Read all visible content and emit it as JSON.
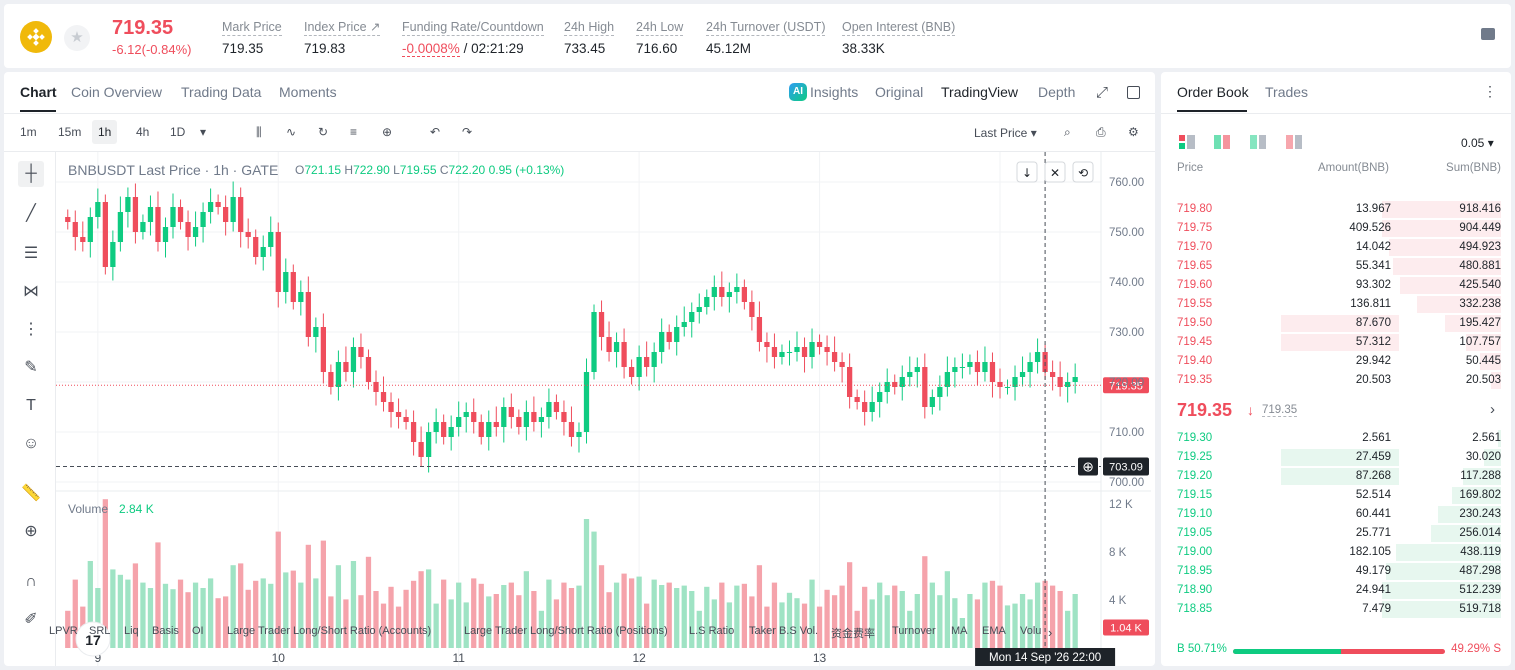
{
  "ticker": {
    "price": "719.35",
    "change": "-6.12(-0.84%)",
    "stats": [
      {
        "label": "Mark Price",
        "value": "719.35"
      },
      {
        "label": "Index Price ↗",
        "value": "719.83"
      },
      {
        "label": "Funding Rate/Countdown",
        "value_rate": "-0.0008%",
        "value_cd": "/ 02:21:29"
      },
      {
        "label": "24h High",
        "value": "733.45"
      },
      {
        "label": "24h Low",
        "value": "716.60"
      },
      {
        "label": "24h Turnover (USDT)",
        "value": "45.12M"
      },
      {
        "label": "Open Interest (BNB)",
        "value": "38.33K"
      }
    ]
  },
  "chart_tabs": [
    "Chart",
    "Coin Overview",
    "Trading Data",
    "Moments"
  ],
  "view_tabs": [
    "Insights",
    "Original",
    "TradingView",
    "Depth"
  ],
  "ai_badge": "AI",
  "timeframes": [
    "1m",
    "15m",
    "1h",
    "4h",
    "1D"
  ],
  "last_price_select": "Last Price",
  "chart_header": {
    "title": "BNBUSDT Last Price · 1h · GATE",
    "o": "721.15",
    "h": "722.90",
    "l": "719.55",
    "c": "722.20",
    "chg": "0.95 (+0.13%)"
  },
  "volume_header": {
    "label": "Volume",
    "value": "2.84 K"
  },
  "price_axis": [
    "760.00",
    "750.00",
    "740.00",
    "730.00",
    "720.00",
    "710.00",
    "700.00"
  ],
  "volume_axis": [
    "12 K",
    "8 K",
    "4 K"
  ],
  "last_price_tag": "719.35",
  "crosshair_price_tag": "703.09",
  "last_volume_tag": "1.04 K",
  "time_axis": [
    "9",
    "10",
    "11",
    "12",
    "13",
    "14"
  ],
  "crosshair_time": "Mon 14 Sep '26   22:00",
  "tv_logo": "17",
  "indicators": [
    "LPVR",
    "SRL",
    "Liq",
    "Basis",
    "OI",
    "Large Trader Long/Short Ratio (Accounts)",
    "Large Trader Long/Short Ratio (Positions)",
    "L.S Ratio",
    "Taker B.S Vol.",
    "资金费率",
    "Turnover",
    "MA",
    "EMA",
    "Volu"
  ],
  "order_book": {
    "tabs": [
      "Order Book",
      "Trades"
    ],
    "tick": "0.05",
    "headers": [
      "Price",
      "Amount(BNB)",
      "Sum(BNB)"
    ],
    "asks": [
      {
        "price": "719.80",
        "amount": "13.967",
        "sum": "918.416",
        "depth": 0.34,
        "amt": 0
      },
      {
        "price": "719.75",
        "amount": "409.526",
        "sum": "904.449",
        "depth": 0.34,
        "amt": 0
      },
      {
        "price": "719.70",
        "amount": "14.042",
        "sum": "494.923",
        "depth": 0.32,
        "amt": 0
      },
      {
        "price": "719.65",
        "amount": "55.341",
        "sum": "480.881",
        "depth": 0.31,
        "amt": 0
      },
      {
        "price": "719.60",
        "amount": "93.302",
        "sum": "425.540",
        "depth": 0.29,
        "amt": 0
      },
      {
        "price": "719.55",
        "amount": "136.811",
        "sum": "332.238",
        "depth": 0.24,
        "amt": 0
      },
      {
        "price": "719.50",
        "amount": "87.670",
        "sum": "195.427",
        "depth": 0.16,
        "amt": 0.34
      },
      {
        "price": "719.45",
        "amount": "57.312",
        "sum": "107.757",
        "depth": 0.1,
        "amt": 0.34
      },
      {
        "price": "719.40",
        "amount": "29.942",
        "sum": "50.445",
        "depth": 0.06,
        "amt": 0
      },
      {
        "price": "719.35",
        "amount": "20.503",
        "sum": "20.503",
        "depth": 0.03,
        "amt": 0
      }
    ],
    "mid": {
      "price": "719.35",
      "arrow": "↓",
      "mark": "719.35"
    },
    "bids": [
      {
        "price": "719.30",
        "amount": "2.561",
        "sum": "2.561",
        "depth": 0.01,
        "amt": 0
      },
      {
        "price": "719.25",
        "amount": "27.459",
        "sum": "30.020",
        "depth": 0.05,
        "amt": 0.34
      },
      {
        "price": "719.20",
        "amount": "87.268",
        "sum": "117.288",
        "depth": 0.11,
        "amt": 0.34
      },
      {
        "price": "719.15",
        "amount": "52.514",
        "sum": "169.802",
        "depth": 0.14,
        "amt": 0
      },
      {
        "price": "719.10",
        "amount": "60.441",
        "sum": "230.243",
        "depth": 0.18,
        "amt": 0
      },
      {
        "price": "719.05",
        "amount": "25.771",
        "sum": "256.014",
        "depth": 0.2,
        "amt": 0
      },
      {
        "price": "719.00",
        "amount": "182.105",
        "sum": "438.119",
        "depth": 0.3,
        "amt": 0
      },
      {
        "price": "718.95",
        "amount": "49.179",
        "sum": "487.298",
        "depth": 0.33,
        "amt": 0
      },
      {
        "price": "718.90",
        "amount": "24.941",
        "sum": "512.239",
        "depth": 0.34,
        "amt": 0
      },
      {
        "price": "718.85",
        "amount": "7.479",
        "sum": "519.718",
        "depth": 0.34,
        "amt": 0
      }
    ],
    "buy_ratio": "B 50.71%",
    "sell_ratio": "49.29% S",
    "buy_fraction": 0.5071
  },
  "colors": {
    "up": "#0ecb81",
    "down": "#ef4d5c",
    "bnb": "#f0b90b"
  },
  "chart_data": {
    "type": "candlestick",
    "symbol": "BNBUSDT",
    "interval": "1h",
    "ylim": [
      700,
      762
    ],
    "volume_ylim": [
      0,
      13
    ],
    "x_ticks": [
      {
        "label": "9",
        "index": 4
      },
      {
        "label": "10",
        "index": 28
      },
      {
        "label": "11",
        "index": 52
      },
      {
        "label": "12",
        "index": 76
      },
      {
        "label": "13",
        "index": 100
      },
      {
        "label": "14",
        "index": 124
      }
    ],
    "closes": [
      752,
      749,
      748,
      753,
      756,
      743,
      748,
      754,
      757,
      750,
      752,
      755,
      748,
      751,
      755,
      752,
      749,
      751,
      754,
      756,
      755,
      752,
      757,
      750,
      749,
      745,
      747,
      750,
      738,
      742,
      736,
      738,
      729,
      731,
      722,
      719,
      724,
      722,
      727,
      725,
      720,
      718,
      716,
      714,
      713,
      712,
      708,
      705,
      710,
      712,
      709,
      711,
      713,
      714,
      712,
      709,
      712,
      711,
      715,
      713,
      711,
      714,
      712,
      713,
      716,
      714,
      712,
      709,
      710,
      722,
      734,
      729,
      726,
      728,
      723,
      721,
      725,
      723,
      726,
      730,
      728,
      731,
      732,
      734,
      735,
      737,
      739,
      737,
      738,
      739,
      736,
      733,
      728,
      727,
      725,
      726,
      726,
      727,
      725,
      728,
      727,
      726,
      724,
      723,
      717,
      716,
      714,
      716,
      718,
      720,
      719,
      721,
      722,
      723,
      715,
      717,
      719,
      722,
      723,
      723,
      724,
      722,
      724,
      720,
      719,
      719,
      721,
      722,
      724,
      726,
      722,
      721,
      719,
      720,
      721
    ]
  }
}
